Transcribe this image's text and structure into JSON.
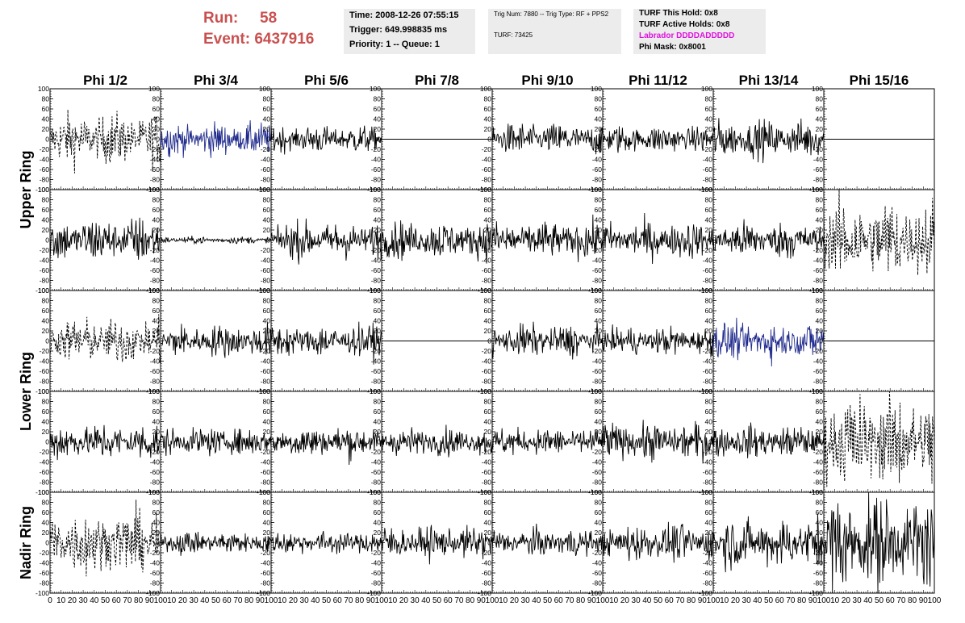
{
  "header": {
    "run_label": "Run:",
    "run_value": "58",
    "event_label": "Event:",
    "event_value": "6437916"
  },
  "info_panel_1": {
    "time": "Time: 2008-12-26 07:55:15",
    "trigger": "Trigger: 649.998835 ms",
    "priority": "Priority: 1 -- Queue: 1"
  },
  "info_panel_2": {
    "trig": "Trig Num: 7880 -- Trig Type: RF + PPS2",
    "turf": "TURF: 73425"
  },
  "info_panel_3": {
    "hold": "TURF This Hold: 0x8",
    "active": "TURF Active Holds: 0x8",
    "labrador": "Labrador DDDDADDDDD",
    "phimask": "Phi Mask: 0x8001"
  },
  "chart_data": {
    "type": "line",
    "columns": [
      "Phi 1/2",
      "Phi 3/4",
      "Phi 5/6",
      "Phi 7/8",
      "Phi 9/10",
      "Phi 11/12",
      "Phi 13/14",
      "Phi 15/16"
    ],
    "ring_labels": [
      "Upper Ring",
      "Lower Ring",
      "Nadir Ring"
    ],
    "rows": 5,
    "xlim": [
      0,
      100
    ],
    "ylim": [
      -100,
      100
    ],
    "y_ticks": [
      -80,
      -60,
      -40,
      -20,
      0,
      20,
      40,
      60,
      80,
      100
    ],
    "x_ticks": [
      0,
      10,
      20,
      30,
      40,
      50,
      60,
      70,
      80,
      90,
      100
    ],
    "colors": {
      "normal": "#000000",
      "highlight": "#1f2a8c",
      "title": "#c9504f",
      "labrador": "#e010e0"
    },
    "panels": [
      [
        {
          "style": "dashed",
          "amp": 22
        },
        {
          "style": "blue",
          "amp": 14
        },
        {
          "style": "solid",
          "amp": 12
        },
        {
          "style": "flat",
          "amp": 0
        },
        {
          "style": "solid",
          "amp": 14
        },
        {
          "style": "solid",
          "amp": 12
        },
        {
          "style": "solid",
          "amp": 16
        },
        {
          "style": "flat",
          "amp": 0
        }
      ],
      [
        {
          "style": "solid",
          "amp": 20
        },
        {
          "style": "solid",
          "amp": 3
        },
        {
          "style": "solid",
          "amp": 16
        },
        {
          "style": "solid",
          "amp": 16
        },
        {
          "style": "solid",
          "amp": 16
        },
        {
          "style": "solid",
          "amp": 16
        },
        {
          "style": "solid",
          "amp": 16
        },
        {
          "style": "dashed",
          "amp": 35
        }
      ],
      [
        {
          "style": "dashed",
          "amp": 20
        },
        {
          "style": "solid",
          "amp": 14
        },
        {
          "style": "solid",
          "amp": 14
        },
        {
          "style": "flat",
          "amp": 0
        },
        {
          "style": "solid",
          "amp": 14
        },
        {
          "style": "solid",
          "amp": 12
        },
        {
          "style": "blue",
          "amp": 16
        },
        {
          "style": "flat",
          "amp": 0
        }
      ],
      [
        {
          "style": "solid",
          "amp": 16
        },
        {
          "style": "solid",
          "amp": 12
        },
        {
          "style": "solid",
          "amp": 14
        },
        {
          "style": "solid",
          "amp": 12
        },
        {
          "style": "solid",
          "amp": 12
        },
        {
          "style": "solid",
          "amp": 16
        },
        {
          "style": "solid",
          "amp": 14
        },
        {
          "style": "dashed",
          "amp": 40
        }
      ],
      [
        {
          "style": "dashed",
          "amp": 28
        },
        {
          "style": "solid",
          "amp": 10
        },
        {
          "style": "solid",
          "amp": 10
        },
        {
          "style": "solid",
          "amp": 14
        },
        {
          "style": "solid",
          "amp": 12
        },
        {
          "style": "solid",
          "amp": 16
        },
        {
          "style": "solid",
          "amp": 22
        },
        {
          "style": "solid",
          "amp": 40
        }
      ]
    ]
  }
}
